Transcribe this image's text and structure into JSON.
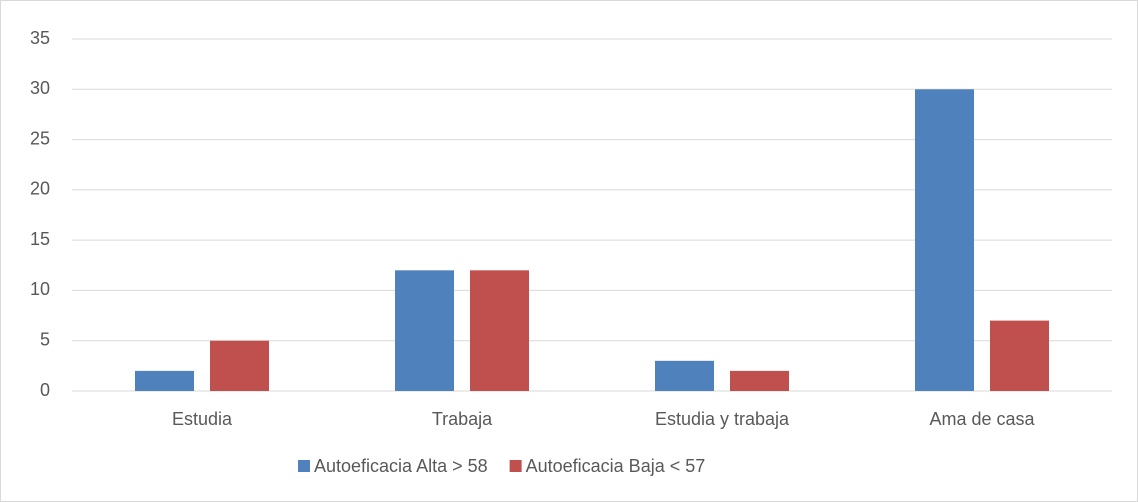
{
  "chart_data": {
    "type": "bar",
    "categories": [
      "Estudia",
      "Trabaja",
      "Estudia y trabaja",
      "Ama de casa"
    ],
    "series": [
      {
        "name": "Autoeficacia Alta > 58",
        "color": "#4f81bd",
        "values": [
          2,
          12,
          3,
          30
        ]
      },
      {
        "name": "Autoeficacia Baja < 57",
        "color": "#c0504d",
        "values": [
          5,
          12,
          2,
          7
        ]
      }
    ],
    "ylim": [
      0,
      35
    ],
    "yticks": [
      0,
      5,
      10,
      15,
      20,
      25,
      30,
      35
    ],
    "grid": true,
    "legend": "bottom"
  }
}
